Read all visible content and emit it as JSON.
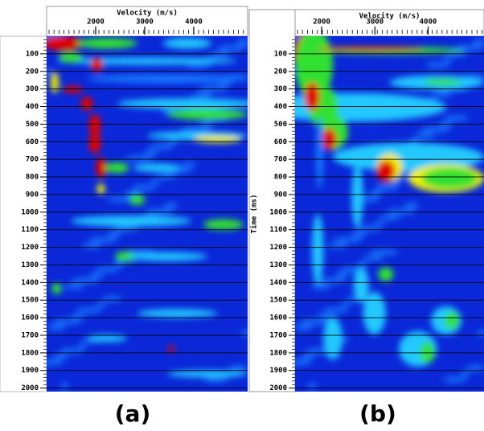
{
  "figure": {
    "panels": [
      {
        "label": "(a)",
        "x_title": "Velocity (m/s)",
        "xlim": [
          1000,
          5100
        ],
        "xticks": [
          2000,
          3000,
          4000
        ],
        "ylim": [
          0,
          2020
        ],
        "yticks": [
          100,
          200,
          300,
          400,
          500,
          600,
          700,
          800,
          900,
          1000,
          1100,
          1200,
          1300,
          1400,
          1500,
          1600,
          1700,
          1800,
          1900,
          2000
        ],
        "grid": true
      },
      {
        "label": "(b)",
        "x_title": "Velocity (m/s)",
        "y_title": "Time (ms)",
        "xlim": [
          1500,
          5050
        ],
        "xticks": [
          2000,
          3000,
          4000
        ],
        "ylim": [
          0,
          2020
        ],
        "yticks": [
          100,
          200,
          300,
          400,
          500,
          600,
          700,
          800,
          900,
          1000,
          1100,
          1200,
          1300,
          1400,
          1500,
          1600,
          1700,
          1800,
          1900,
          2000
        ],
        "grid": true
      }
    ]
  }
}
